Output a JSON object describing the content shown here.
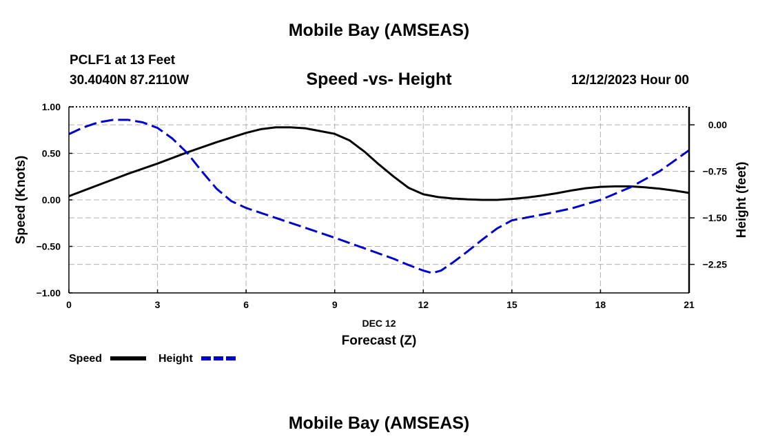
{
  "header": {
    "title": "Mobile Bay (AMSEAS)",
    "station": "PCLF1 at 13 Feet",
    "coords": "30.4040N  87.2110W",
    "chart_title": "Speed -vs- Height",
    "datetime": "12/12/2023 Hour 00"
  },
  "footer": {
    "title": "Mobile Bay (AMSEAS)"
  },
  "colors": {
    "speed": "#000000",
    "height": "#0000cc",
    "grid": "#b0b0b0"
  },
  "chart_data": {
    "type": "line",
    "title": "Speed -vs- Height",
    "x_label_date": "DEC 12",
    "xlabel": "Forecast (Z)",
    "ylabel": "Speed (Knots)",
    "y2label": "Height (feet)",
    "xlim": [
      0,
      21
    ],
    "ylim": [
      -1.0,
      1.0
    ],
    "y2lim": [
      -2.71,
      0.29
    ],
    "x_ticks": [
      0,
      3,
      6,
      9,
      12,
      15,
      18,
      21
    ],
    "y_ticks": [
      -1.0,
      -0.5,
      0.0,
      0.5,
      1.0
    ],
    "y_tick_labels": [
      "−1.00",
      "−0.50",
      "0.00",
      "0.50",
      "1.00"
    ],
    "y2_ticks": [
      -2.25,
      -1.5,
      -0.75,
      0.0
    ],
    "y2_tick_labels": [
      "−2.25",
      "−1.50",
      "−0.75",
      "0.00"
    ],
    "grid": true,
    "legend_position": "bottom-left",
    "series": [
      {
        "name": "Speed",
        "axis": "left",
        "style": "solid",
        "x": [
          0,
          1,
          2,
          3,
          4,
          5,
          6,
          6.5,
          7,
          7.5,
          8,
          8.5,
          9,
          9.5,
          10,
          10.5,
          11,
          11.5,
          12,
          12.5,
          13,
          13.5,
          14,
          14.5,
          15,
          15.5,
          16,
          16.5,
          17,
          17.5,
          18,
          18.5,
          19,
          19.5,
          20,
          20.5,
          21
        ],
        "values": [
          0.04,
          0.16,
          0.28,
          0.39,
          0.51,
          0.62,
          0.72,
          0.76,
          0.78,
          0.78,
          0.77,
          0.74,
          0.71,
          0.64,
          0.52,
          0.38,
          0.25,
          0.13,
          0.06,
          0.03,
          0.015,
          0.005,
          0.0,
          0.0,
          0.01,
          0.025,
          0.045,
          0.07,
          0.1,
          0.125,
          0.14,
          0.145,
          0.145,
          0.135,
          0.12,
          0.1,
          0.075
        ]
      },
      {
        "name": "Height",
        "axis": "right",
        "style": "dashed",
        "x": [
          0,
          0.5,
          1,
          1.5,
          2,
          2.5,
          3,
          3.5,
          4,
          4.5,
          5,
          5.5,
          6,
          7,
          8,
          9,
          10,
          11,
          11.5,
          12,
          12.3,
          12.6,
          13,
          13.5,
          14,
          14.5,
          15,
          16,
          17,
          18,
          19,
          20,
          21
        ],
        "values": [
          -0.15,
          -0.04,
          0.04,
          0.08,
          0.08,
          0.04,
          -0.05,
          -0.22,
          -0.45,
          -0.75,
          -1.03,
          -1.23,
          -1.34,
          -1.5,
          -1.66,
          -1.82,
          -1.99,
          -2.16,
          -2.26,
          -2.35,
          -2.39,
          -2.35,
          -2.22,
          -2.04,
          -1.85,
          -1.67,
          -1.54,
          -1.45,
          -1.35,
          -1.21,
          -1.01,
          -0.75,
          -0.41
        ]
      }
    ]
  },
  "legend": {
    "speed_label": "Speed",
    "height_label": "Height"
  }
}
